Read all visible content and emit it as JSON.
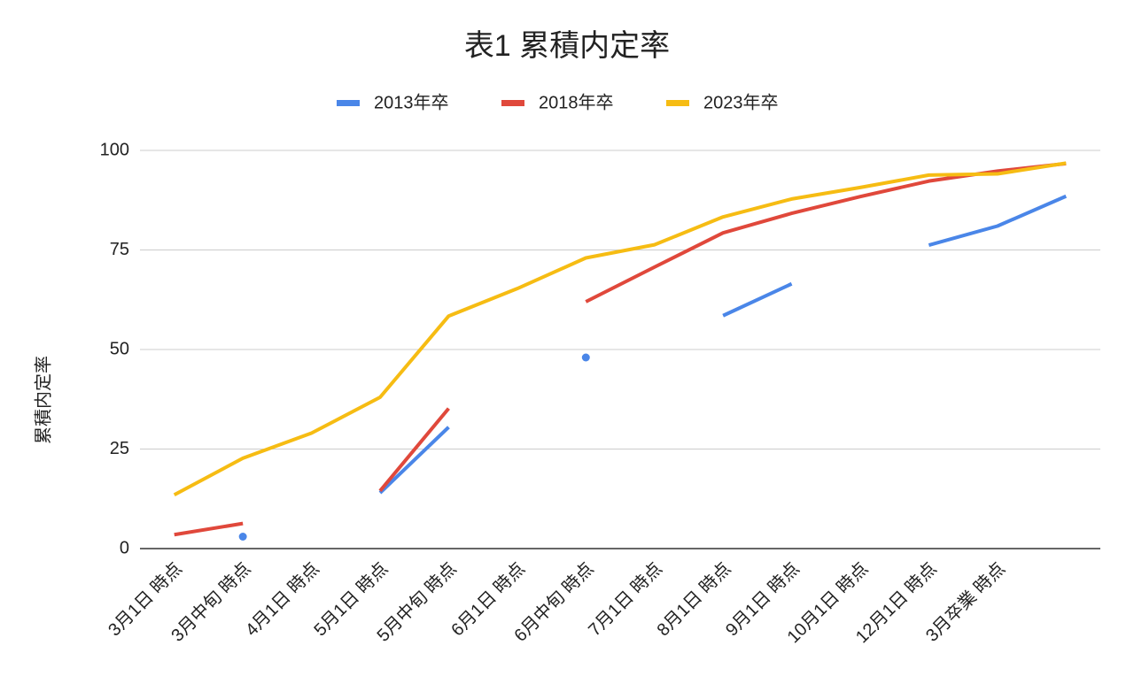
{
  "chart_data": {
    "type": "line",
    "title": "表1 累積内定率",
    "y_label": "累積内定率",
    "categories": [
      "3月1日 時点",
      "3月中旬 時点",
      "4月1日 時点",
      "5月1日 時点",
      "5月中旬 時点",
      "6月1日 時点",
      "6月中旬 時点",
      "7月1日 時点",
      "8月1日 時点",
      "9月1日 時点",
      "10月1日 時点",
      "12月1日 時点",
      "3月卒業 時点",
      null
    ],
    "series": [
      {
        "name": "2013年卒",
        "color": "#4a86e8",
        "values": [
          null,
          3,
          null,
          14,
          30.5,
          null,
          48,
          null,
          58.5,
          66.5,
          null,
          76.2,
          81,
          88.5
        ]
      },
      {
        "name": "2018年卒",
        "color": "#e0483b",
        "values": [
          3.5,
          6.3,
          null,
          14.5,
          35.2,
          null,
          62,
          70.7,
          79.3,
          84.2,
          88.4,
          92.3,
          94.8,
          96.7
        ]
      },
      {
        "name": "2023年卒",
        "color": "#f6bc13",
        "values": [
          13.5,
          22.7,
          29,
          38,
          58.4,
          65.3,
          73,
          76.3,
          83.3,
          87.8,
          90.7,
          93.8,
          94.1,
          96.8
        ]
      }
    ],
    "ylim": [
      0,
      100
    ],
    "yticks": [
      0,
      25,
      50,
      75,
      100
    ],
    "grid": true,
    "legend": "top"
  }
}
